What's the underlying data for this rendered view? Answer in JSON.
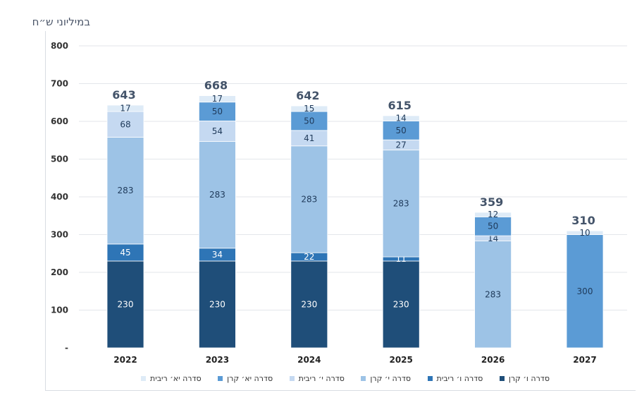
{
  "chart_data": {
    "type": "bar",
    "stacked": true,
    "title": "",
    "unit_label": "במיליוני ש״ח",
    "xlabel": "",
    "ylabel": "",
    "ylim": [
      0,
      800
    ],
    "yticks": [
      {
        "value": 0,
        "label": "-"
      },
      {
        "value": 100,
        "label": "100"
      },
      {
        "value": 200,
        "label": "200"
      },
      {
        "value": 300,
        "label": "300"
      },
      {
        "value": 400,
        "label": "400"
      },
      {
        "value": 500,
        "label": "500"
      },
      {
        "value": 600,
        "label": "600"
      },
      {
        "value": 700,
        "label": "700"
      },
      {
        "value": 800,
        "label": "800"
      }
    ],
    "grid": true,
    "legend_position": "bottom",
    "categories": [
      "2022",
      "2023",
      "2024",
      "2025",
      "2026",
      "2027"
    ],
    "totals": [
      643,
      668,
      642,
      615,
      359,
      310
    ],
    "series": [
      {
        "name": "סדרה ו׳ קרן",
        "color": "#1f4e79",
        "label_color": "#ffffff",
        "values": [
          230,
          230,
          230,
          230,
          null,
          null
        ]
      },
      {
        "name": "סדרה ו׳ ריבית",
        "color": "#2e75b6",
        "label_color": "#ffffff",
        "values": [
          45,
          34,
          22,
          11,
          null,
          null
        ]
      },
      {
        "name": "סדרה י׳ קרן",
        "color": "#9dc3e6",
        "label_color": "#1f3a5a",
        "values": [
          283,
          283,
          283,
          283,
          283,
          null
        ]
      },
      {
        "name": "סדרה י׳ ריבית",
        "color": "#c5d9f1",
        "label_color": "#1f3a5a",
        "values": [
          68,
          54,
          41,
          27,
          14,
          null
        ]
      },
      {
        "name": "סדרה יא׳ קרן",
        "color": "#5b9bd5",
        "label_color": "#1f3a5a",
        "values": [
          null,
          50,
          50,
          50,
          50,
          300
        ]
      },
      {
        "name": "סדרה יא׳ ריבית",
        "color": "#deebf7",
        "label_color": "#1f3a5a",
        "values": [
          17,
          17,
          15,
          14,
          12,
          10
        ]
      }
    ]
  }
}
